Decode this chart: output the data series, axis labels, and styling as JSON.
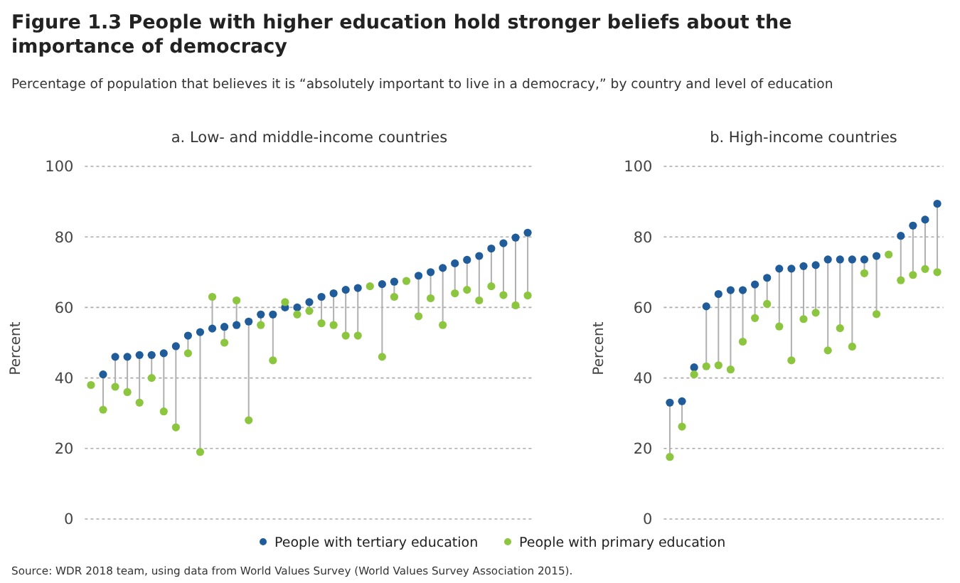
{
  "chart_data": [
    {
      "type": "scatter",
      "title": "a. Low- and middle-income countries",
      "ylabel": "Percent",
      "ylim": [
        0,
        100
      ],
      "yticks": [
        0,
        20,
        40,
        60,
        80,
        100
      ],
      "grid": "y",
      "legend": "bottom",
      "marker": "circle",
      "tick_labels": "y",
      "annotations": [
        "Figure 1.3 People with higher education hold stronger beliefs about the importance of democracy",
        "Percentage of population that believes it is “absolutely important to live in a democracy,” by country and level of education",
        "Source: WDR 2018 team, using data from World Values Survey (World Values Survey Association 2015)."
      ],
      "categories": [
        null,
        null,
        null,
        null,
        null,
        null,
        null,
        null,
        null,
        null,
        null,
        null,
        null,
        null,
        null,
        null,
        null,
        null,
        null,
        null,
        null,
        null,
        null,
        null,
        null,
        null,
        null,
        null,
        null,
        null,
        null,
        null,
        null,
        null,
        null,
        null,
        null
      ],
      "series": [
        {
          "name": "People with tertiary education",
          "color": "#1f5c99",
          "values": [
            null,
            41,
            46,
            46,
            46.5,
            46.5,
            47,
            49,
            52,
            53,
            54,
            54.5,
            55,
            56,
            58,
            58,
            60,
            60,
            61.5,
            63,
            64,
            65,
            65.5,
            null,
            66.6,
            67.3,
            null,
            69,
            70,
            71.2,
            72.5,
            73.5,
            74.6,
            76.7,
            78.2,
            79.8,
            81.2
          ]
        },
        {
          "name": "People with primary education",
          "color": "#8cc63f",
          "values": [
            38,
            31,
            37.5,
            36,
            33,
            40,
            30.5,
            26,
            47,
            19,
            63,
            50,
            62,
            28,
            55,
            45,
            61.5,
            58,
            59,
            55.5,
            55,
            52,
            52,
            66,
            46,
            63,
            67.5,
            57.5,
            62.6,
            55,
            64,
            65,
            62,
            66,
            63.5,
            60.6,
            63.4
          ]
        }
      ]
    },
    {
      "type": "scatter",
      "title": "b. High-income countries",
      "ylabel": "Percent",
      "ylim": [
        0,
        100
      ],
      "yticks": [
        0,
        20,
        40,
        60,
        80,
        100
      ],
      "grid": "y",
      "marker": "circle",
      "tick_labels": "y",
      "categories": [
        null,
        null,
        null,
        null,
        null,
        null,
        null,
        null,
        null,
        null,
        null,
        null,
        null,
        null,
        null,
        null,
        null,
        null,
        null,
        null,
        null,
        null,
        null
      ],
      "series": [
        {
          "color": "#1f5c99",
          "values": [
            33,
            33.4,
            43,
            60.3,
            63.8,
            64.9,
            64.9,
            66.5,
            68.4,
            71,
            71,
            71.7,
            72,
            73.6,
            73.6,
            73.6,
            73.6,
            74.6,
            null,
            80.3,
            83.2,
            84.9,
            89.4
          ]
        },
        {
          "color": "#8cc63f",
          "values": [
            17.6,
            26.2,
            41,
            43.3,
            43.6,
            42.4,
            50.3,
            57,
            61,
            54.6,
            45,
            56.7,
            58.5,
            47.8,
            54.1,
            48.9,
            69.7,
            58.1,
            75,
            67.7,
            69.2,
            70.9,
            70
          ]
        }
      ]
    }
  ]
}
